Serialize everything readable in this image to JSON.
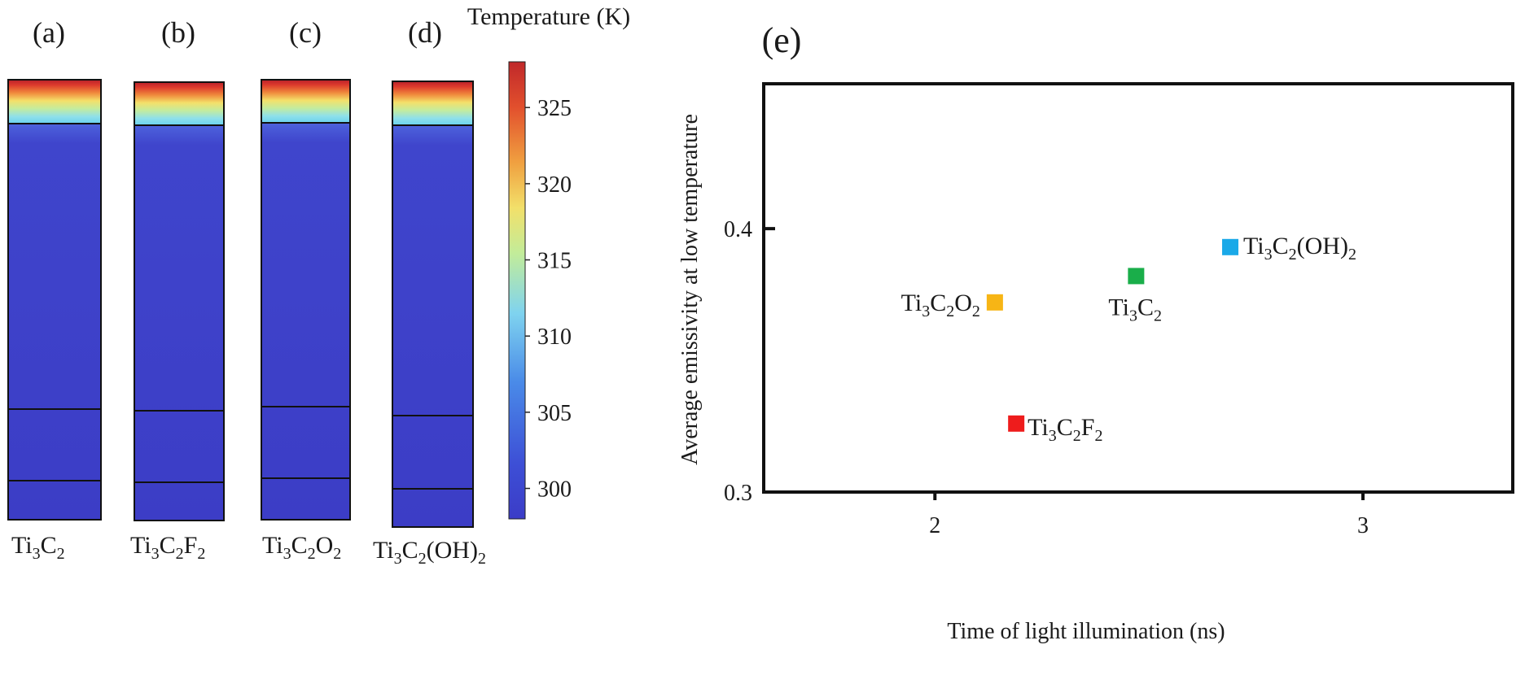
{
  "heatmap_panels": [
    {
      "panel_label": "(a)",
      "material": {
        "base": "Ti",
        "s1": "3",
        "mid": "C",
        "s2": "2",
        "tail": ""
      }
    },
    {
      "panel_label": "(b)",
      "material": {
        "base": "Ti",
        "s1": "3",
        "mid": "C",
        "s2": "2",
        "tail": "F",
        "s3": "2"
      }
    },
    {
      "panel_label": "(c)",
      "material": {
        "base": "Ti",
        "s1": "3",
        "mid": "C",
        "s2": "2",
        "tail": "O",
        "s3": "2"
      }
    },
    {
      "panel_label": "(d)",
      "material": {
        "base": "Ti",
        "s1": "3",
        "mid": "C",
        "s2": "2",
        "tail": "(OH)",
        "s3": "2"
      }
    }
  ],
  "colorbar": {
    "title": "Temperature (K)",
    "min": 298,
    "max": 328,
    "ticks": [
      300,
      305,
      310,
      315,
      320,
      325
    ],
    "tick_labels": [
      "300",
      "305",
      "310",
      "315",
      "320",
      "325"
    ],
    "colors": [
      "#3b3cc7",
      "#3d4fd6",
      "#4a8be8",
      "#7fd3ef",
      "#c2ec9a",
      "#f2e06a",
      "#f0a040",
      "#e2502d",
      "#c0282a"
    ]
  },
  "chart_data": {
    "type": "scatter",
    "panel_label": "(e)",
    "xlabel": "Time of light illumination (ns)",
    "ylabel": "Average emissivity at low temperature",
    "xlim": [
      1.6,
      3.35
    ],
    "ylim": [
      0.3,
      0.455
    ],
    "xticks": [
      2,
      3
    ],
    "xtick_labels": [
      "2",
      "3"
    ],
    "yticks": [
      0.3,
      0.4
    ],
    "ytick_labels": [
      "0.3",
      "0.4"
    ],
    "series": [
      {
        "name": "Ti3C2",
        "x": 2.47,
        "y": 0.382,
        "color": "#1aae4a",
        "label": {
          "base": "Ti",
          "s1": "3",
          "mid": "C",
          "s2": "2",
          "tail": "",
          "s3": ""
        }
      },
      {
        "name": "Ti3C2F2",
        "x": 2.19,
        "y": 0.326,
        "color": "#ee1c1c",
        "label": {
          "base": "Ti",
          "s1": "3",
          "mid": "C",
          "s2": "2",
          "tail": "F",
          "s3": "2"
        }
      },
      {
        "name": "Ti3C2O2",
        "x": 2.14,
        "y": 0.372,
        "color": "#f7b515",
        "label": {
          "base": "Ti",
          "s1": "3",
          "mid": "C",
          "s2": "2",
          "tail": "O",
          "s3": "2"
        }
      },
      {
        "name": "Ti3C2(OH)2",
        "x": 2.69,
        "y": 0.393,
        "color": "#1aa9e8",
        "label": {
          "base": "Ti",
          "s1": "3",
          "mid": "C",
          "s2": "2",
          "tail": "(OH)",
          "s3": "2"
        }
      }
    ]
  }
}
